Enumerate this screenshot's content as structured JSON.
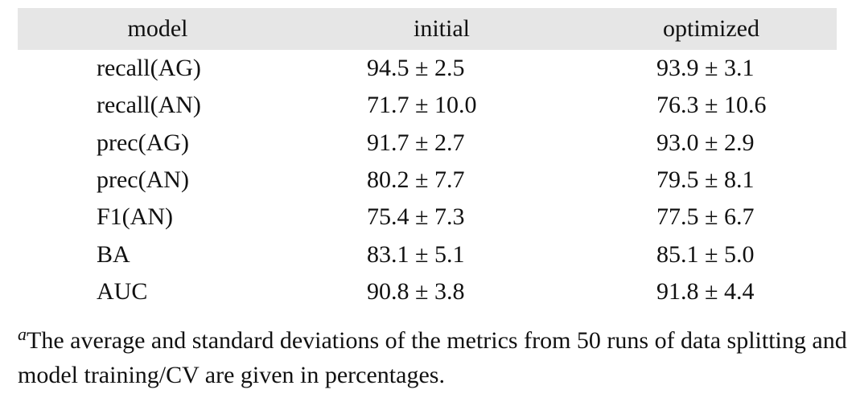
{
  "table": {
    "header": [
      "model",
      "initial",
      "optimized"
    ],
    "rows": [
      [
        "recall(AG)",
        "94.5 ± 2.5",
        "93.9 ± 3.1"
      ],
      [
        "recall(AN)",
        "71.7 ± 10.0",
        "76.3 ± 10.6"
      ],
      [
        "prec(AG)",
        "91.7 ± 2.7",
        "93.0 ± 2.9"
      ],
      [
        "prec(AN)",
        "80.2 ± 7.7",
        "79.5 ± 8.1"
      ],
      [
        "F1(AN)",
        "75.4 ± 7.3",
        "77.5 ± 6.7"
      ],
      [
        "BA",
        "83.1 ± 5.1",
        "85.1 ± 5.0"
      ],
      [
        "AUC",
        "90.8 ± 3.8",
        "91.8 ± 4.4"
      ]
    ]
  },
  "footnote": {
    "marker": "a",
    "text": "The average and standard deviations of the metrics from 50 runs of data splitting and model training/CV are given in percentages."
  }
}
